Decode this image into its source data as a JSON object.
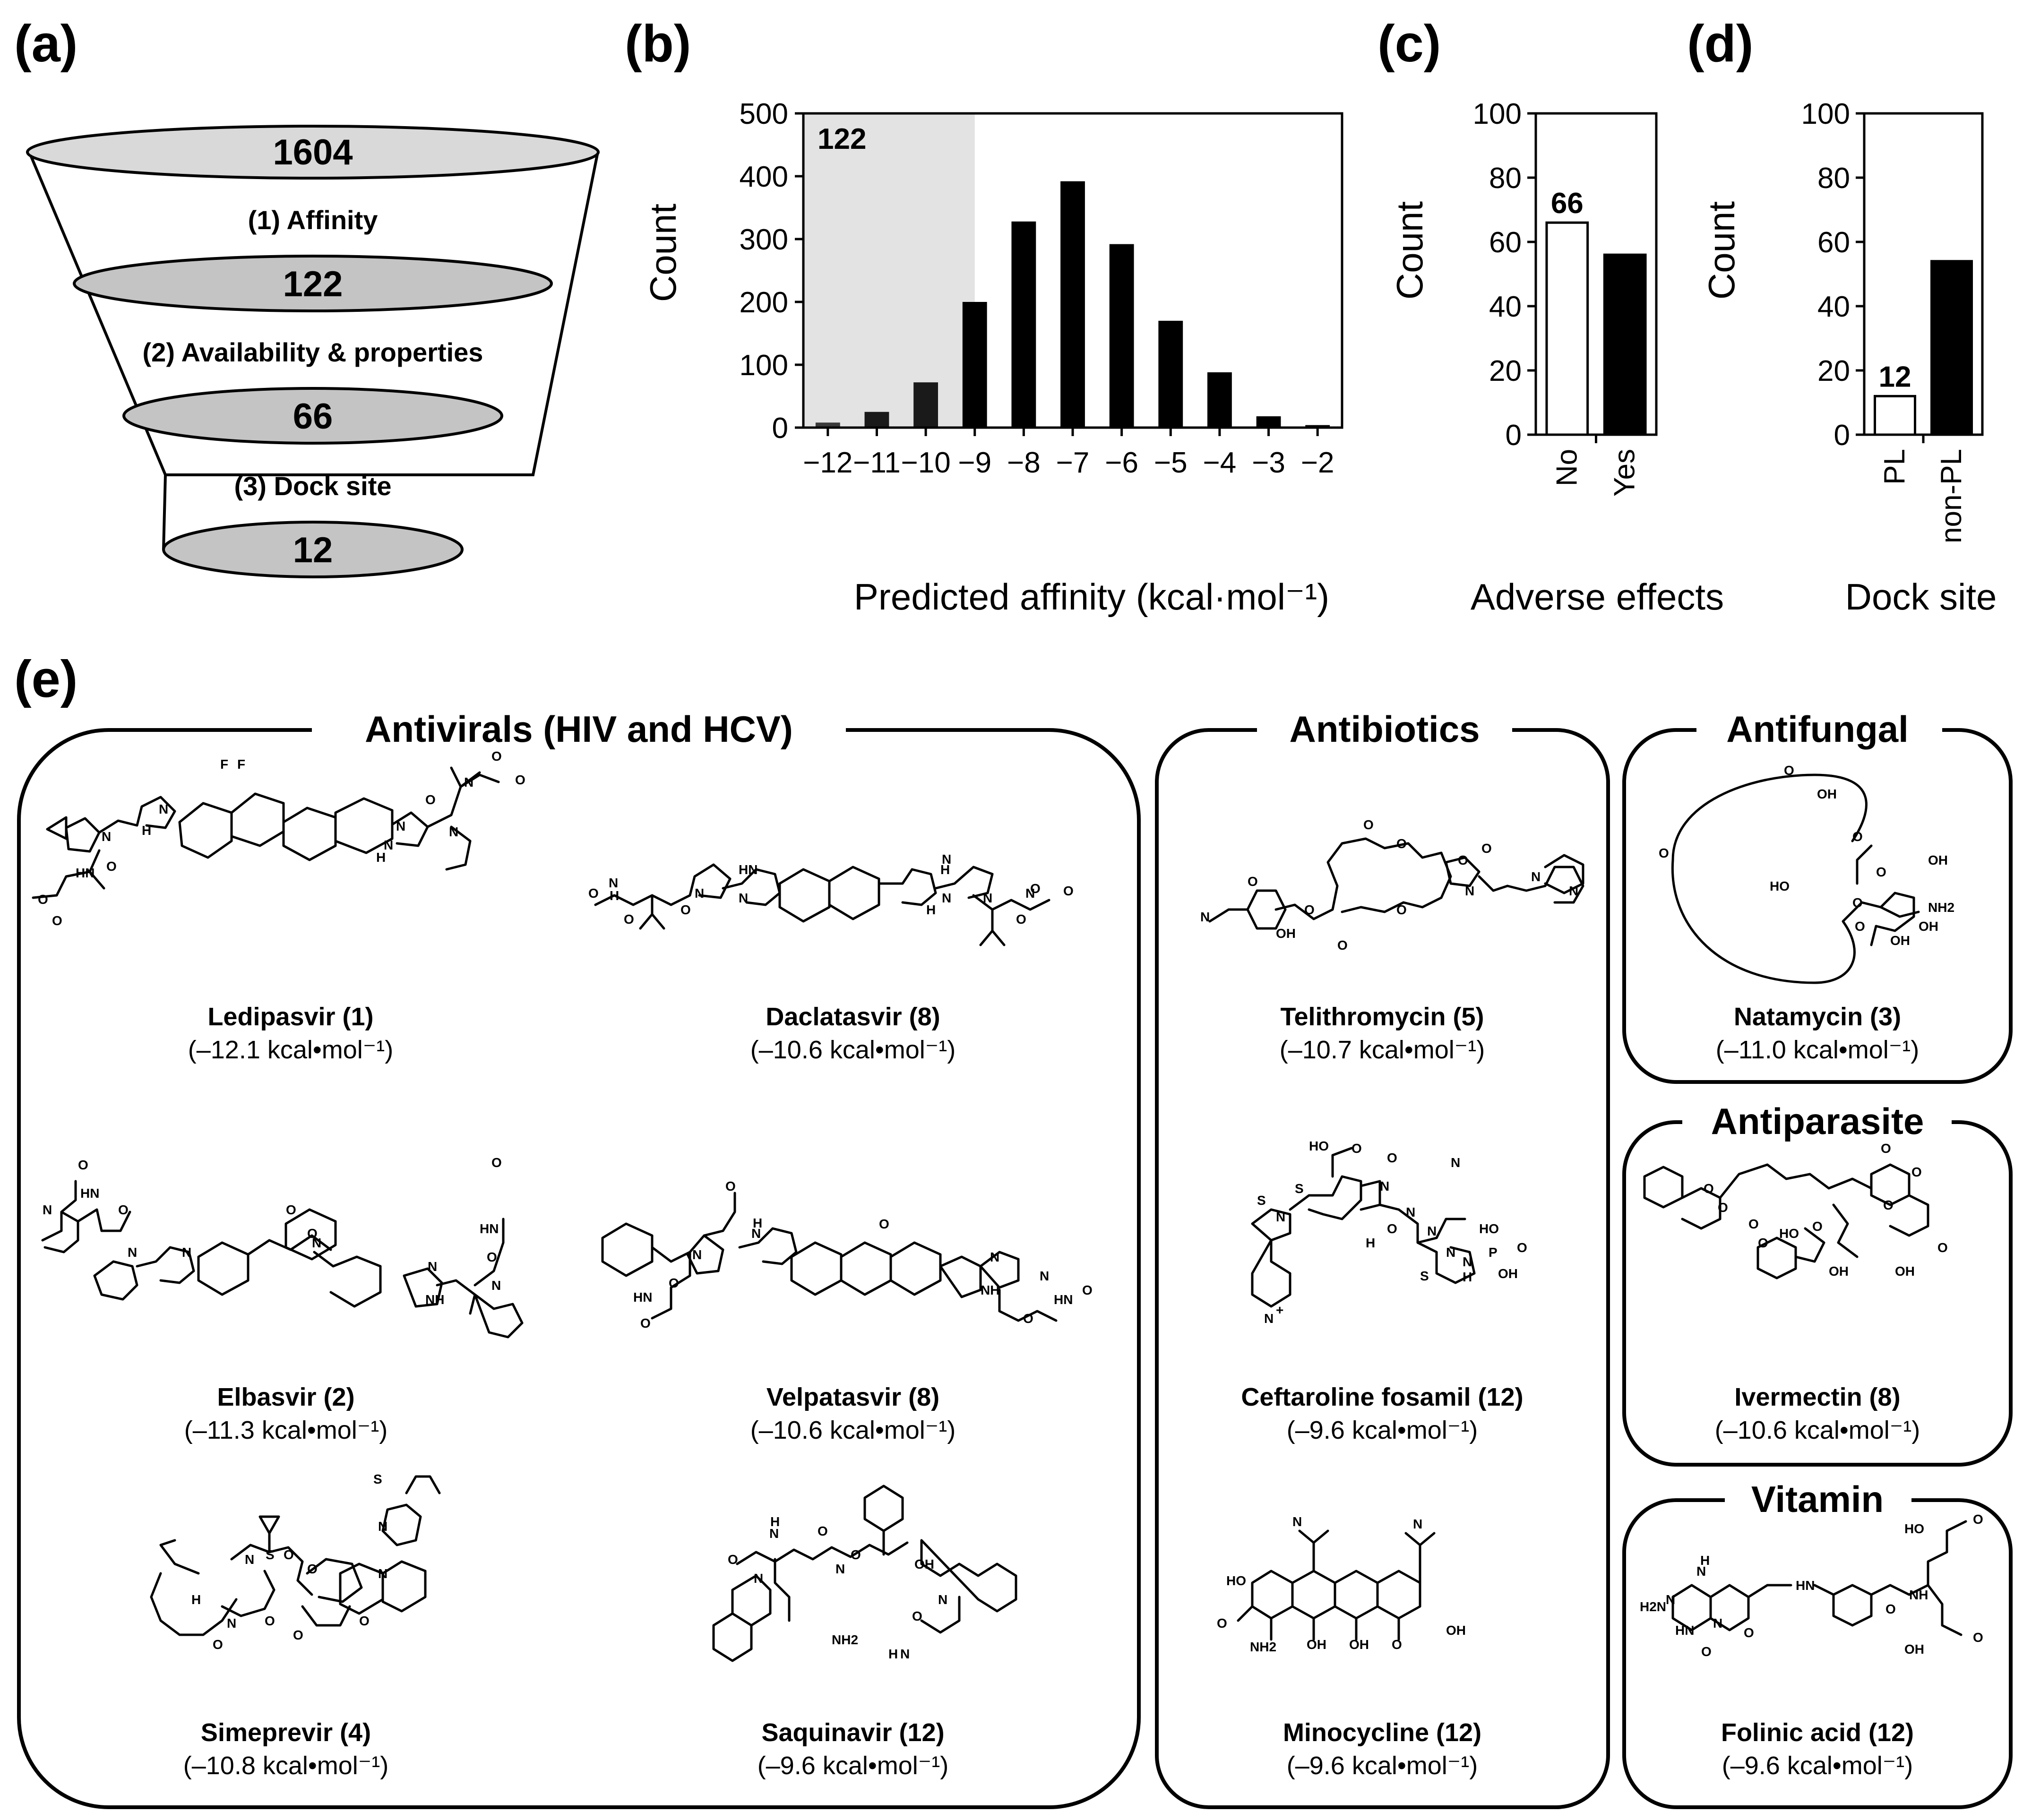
{
  "panels": {
    "a": "(a)",
    "b": "(b)",
    "c": "(c)",
    "d": "(d)",
    "e": "(e)"
  },
  "funnel": {
    "levels": [
      "1604",
      "122",
      "66",
      "12"
    ],
    "steps": [
      "(1) Affinity",
      "(2) Availability & properties",
      "(3) Dock site"
    ]
  },
  "chart_data": [
    {
      "id": "b",
      "type": "bar",
      "xlabel": "Predicted affinity (kcal·mol⁻¹)",
      "ylabel": "Count",
      "ylim": [
        0,
        500
      ],
      "yticks": [
        "0",
        "100",
        "200",
        "300",
        "400",
        "500"
      ],
      "categories": [
        "−12",
        "−11",
        "−10",
        "−9",
        "−8",
        "−7",
        "−6",
        "−5",
        "−4",
        "−3",
        "−2"
      ],
      "values": [
        8,
        25,
        72,
        200,
        328,
        392,
        292,
        170,
        88,
        18,
        4
      ],
      "highlight_label": "122",
      "highlight_range": [
        "−12.5",
        "−9"
      ],
      "colors": [
        "#3a3a3a",
        "#1a1a1a",
        "#1a1a1a",
        "#000000",
        "#000000",
        "#000000",
        "#000000",
        "#000000",
        "#000000",
        "#000000",
        "#000000"
      ],
      "shade_color": "#e3e3e3"
    },
    {
      "id": "c",
      "type": "bar",
      "xlabel": "Adverse effects",
      "ylabel": "Count",
      "ylim": [
        0,
        100
      ],
      "yticks": [
        "0",
        "20",
        "40",
        "60",
        "80",
        "100"
      ],
      "categories": [
        "No",
        "Yes"
      ],
      "values": [
        66,
        56
      ],
      "fills": [
        "#ffffff",
        "#000000"
      ],
      "data_label": "66"
    },
    {
      "id": "d",
      "type": "bar",
      "xlabel": "Dock site",
      "ylabel": "Count",
      "ylim": [
        0,
        100
      ],
      "yticks": [
        "0",
        "20",
        "40",
        "60",
        "80",
        "100"
      ],
      "categories": [
        "PL",
        "non-PL"
      ],
      "values": [
        12,
        54
      ],
      "fills": [
        "#ffffff",
        "#000000"
      ],
      "data_label": "12"
    }
  ],
  "groups": {
    "antivirals": {
      "title": "Antivirals (HIV and HCV)",
      "drugs": [
        {
          "name": "Ledipasvir (1)",
          "aff": "(–12.1 kcal•mol⁻¹)"
        },
        {
          "name": "Daclatasvir (8)",
          "aff": "(–10.6 kcal•mol⁻¹)"
        },
        {
          "name": "Elbasvir (2)",
          "aff": "(–11.3 kcal•mol⁻¹)"
        },
        {
          "name": "Velpatasvir (8)",
          "aff": "(–10.6 kcal•mol⁻¹)"
        },
        {
          "name": "Simeprevir (4)",
          "aff": "(–10.8 kcal•mol⁻¹)"
        },
        {
          "name": "Saquinavir (12)",
          "aff": "(–9.6 kcal•mol⁻¹)"
        }
      ]
    },
    "antibiotics": {
      "title": "Antibiotics",
      "drugs": [
        {
          "name": "Telithromycin (5)",
          "aff": "(–10.7 kcal•mol⁻¹)"
        },
        {
          "name": "Ceftaroline fosamil (12)",
          "aff": "(–9.6 kcal•mol⁻¹)"
        },
        {
          "name": "Minocycline (12)",
          "aff": "(–9.6 kcal•mol⁻¹)"
        }
      ]
    },
    "antifungal": {
      "title": "Antifungal",
      "drugs": [
        {
          "name": "Natamycin (3)",
          "aff": "(–11.0 kcal•mol⁻¹)"
        }
      ]
    },
    "antiparasite": {
      "title": "Antiparasite",
      "drugs": [
        {
          "name": "Ivermectin (8)",
          "aff": "(–10.6 kcal•mol⁻¹)"
        }
      ]
    },
    "vitamin": {
      "title": "Vitamin",
      "drugs": [
        {
          "name": "Folinic acid (12)",
          "aff": "(–9.6 kcal•mol⁻¹)"
        }
      ]
    }
  },
  "atoms": {
    "ledipasvir": [
      "F",
      "F",
      "N",
      "H",
      "N",
      "N",
      "H",
      "N",
      "HN",
      "O",
      "O",
      "O",
      "N",
      "O",
      "N",
      "O",
      "O"
    ],
    "daclatasvir": [
      "O",
      "N",
      "H",
      "N",
      "HN",
      "N",
      "H",
      "N",
      "N",
      "H",
      "O",
      "O",
      "N",
      "O",
      "O",
      "N",
      "O"
    ],
    "elbasvir": [
      "O",
      "N",
      "HN",
      "O",
      "O",
      "N",
      "N",
      "O",
      "N",
      "N",
      "NH",
      "N",
      "O",
      "HN",
      "O"
    ],
    "velpatasvir": [
      "O",
      "N",
      "N",
      "H",
      "HN",
      "O",
      "O",
      "O",
      "N",
      "NH",
      "N",
      "HN",
      "O",
      "O"
    ],
    "simeprevir": [
      "N",
      "S",
      "O",
      "O",
      "S",
      "N",
      "N",
      "O",
      "O",
      "N",
      "O",
      "H",
      "O"
    ],
    "saquinavir": [
      "O",
      "H",
      "N",
      "N",
      "O",
      "N",
      "OH",
      "NH2",
      "O",
      "N",
      "O",
      "H",
      "N"
    ],
    "telithromycin": [
      "O",
      "O",
      "O",
      "O",
      "N",
      "N",
      "N",
      "N",
      "O",
      "O",
      "OH",
      "O",
      "O"
    ],
    "ceftaroline": [
      "HO",
      "O",
      "N",
      "O",
      "S",
      "N",
      "N",
      "O",
      "H",
      "N",
      "S",
      "N",
      "N",
      "S",
      "HO",
      "OH",
      "O",
      "P",
      "N",
      "H",
      "N",
      "+"
    ],
    "minocycline": [
      "N",
      "N",
      "HO",
      "O",
      "OH",
      "NH2",
      "OH",
      "O",
      "OH"
    ],
    "natamycin": [
      "O",
      "OH",
      "O",
      "O",
      "HO",
      "OH",
      "O",
      "O",
      "O",
      "OH",
      "NH2",
      "OH"
    ],
    "ivermectin": [
      "O",
      "O",
      "O",
      "O",
      "O",
      "O",
      "HO",
      "O",
      "O",
      "OH",
      "OH",
      "O"
    ],
    "folinic": [
      "N",
      "H",
      "H2N",
      "N",
      "HN",
      "N",
      "O",
      "O",
      "HN",
      "O",
      "NH",
      "HO",
      "O",
      "O",
      "OH"
    ]
  }
}
